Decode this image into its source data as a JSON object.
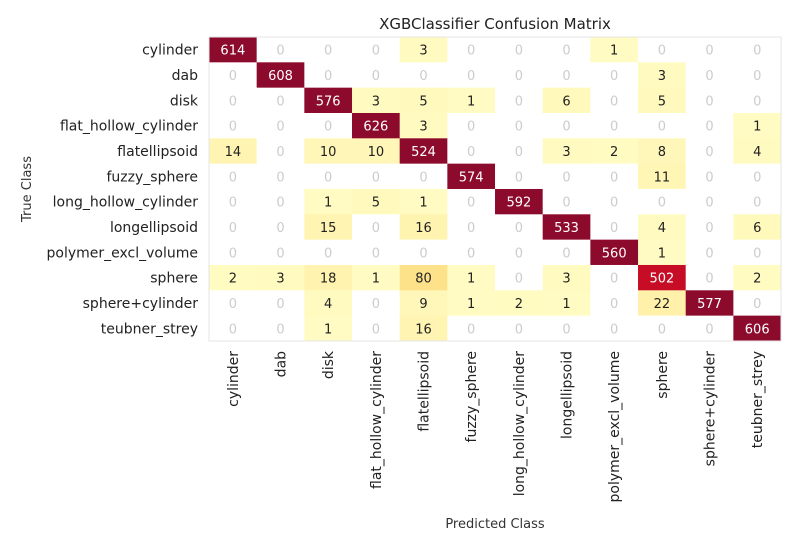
{
  "chart_data": {
    "type": "heatmap",
    "title": "XGBClassifier Confusion Matrix",
    "xlabel": "Predicted Class",
    "ylabel": "True Class",
    "row_labels": [
      "cylinder",
      "dab",
      "disk",
      "flat_hollow_cylinder",
      "flatellipsoid",
      "fuzzy_sphere",
      "long_hollow_cylinder",
      "longellipsoid",
      "polymer_excl_volume",
      "sphere",
      "sphere+cylinder",
      "teubner_strey"
    ],
    "col_labels": [
      "cylinder",
      "dab",
      "disk",
      "flat_hollow_cylinder",
      "flatellipsoid",
      "fuzzy_sphere",
      "long_hollow_cylinder",
      "longellipsoid",
      "polymer_excl_volume",
      "sphere",
      "sphere+cylinder",
      "teubner_strey"
    ],
    "matrix": [
      [
        614,
        0,
        0,
        0,
        3,
        0,
        0,
        0,
        1,
        0,
        0,
        0
      ],
      [
        0,
        608,
        0,
        0,
        0,
        0,
        0,
        0,
        0,
        3,
        0,
        0
      ],
      [
        0,
        0,
        576,
        3,
        5,
        1,
        0,
        6,
        0,
        5,
        0,
        0
      ],
      [
        0,
        0,
        0,
        626,
        3,
        0,
        0,
        0,
        0,
        0,
        0,
        1
      ],
      [
        14,
        0,
        10,
        10,
        524,
        0,
        0,
        3,
        2,
        8,
        0,
        4
      ],
      [
        0,
        0,
        0,
        0,
        0,
        574,
        0,
        0,
        0,
        11,
        0,
        0
      ],
      [
        0,
        0,
        1,
        5,
        1,
        0,
        592,
        0,
        0,
        0,
        0,
        0
      ],
      [
        0,
        0,
        15,
        0,
        16,
        0,
        0,
        533,
        0,
        4,
        0,
        6
      ],
      [
        0,
        0,
        0,
        0,
        0,
        0,
        0,
        0,
        560,
        1,
        0,
        0
      ],
      [
        2,
        3,
        18,
        1,
        80,
        1,
        0,
        3,
        0,
        502,
        0,
        2
      ],
      [
        0,
        0,
        4,
        0,
        9,
        1,
        2,
        1,
        0,
        22,
        577,
        0
      ],
      [
        0,
        0,
        1,
        0,
        16,
        0,
        0,
        0,
        0,
        0,
        0,
        606
      ]
    ],
    "colors": {
      "high": "#7f0028",
      "diag": "#8c0a2c",
      "low": "#ffffcc",
      "zero_text": "#cccccc",
      "text_dark": "#222222",
      "text_light": "#ffffff",
      "axis_label": "#333333"
    }
  }
}
